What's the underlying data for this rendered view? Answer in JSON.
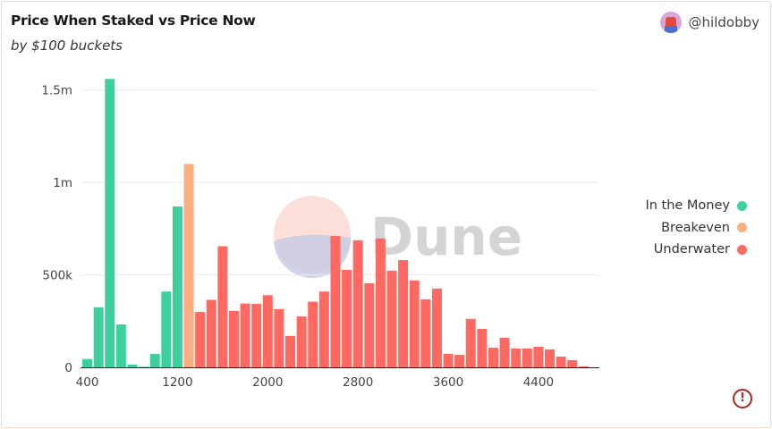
{
  "header": {
    "title": "Price When Staked vs Price Now",
    "subtitle": "by $100 buckets",
    "username": "@hildobby"
  },
  "watermark": "Dune",
  "legend": [
    {
      "label": "In the Money",
      "color": "#3ecf9e"
    },
    {
      "label": "Breakeven",
      "color": "#fbaf80"
    },
    {
      "label": "Underwater",
      "color": "#ff6961"
    }
  ],
  "chart_data": {
    "type": "bar",
    "title": "Price When Staked vs Price Now",
    "subtitle": "by $100 buckets",
    "xlabel": "",
    "ylabel": "",
    "xlim": [
      340,
      4940
    ],
    "ylim": [
      0,
      1600000
    ],
    "grid": true,
    "legend_position": "right",
    "x_ticks": [
      {
        "v": 400,
        "l": "400"
      },
      {
        "v": 1200,
        "l": "1200"
      },
      {
        "v": 2000,
        "l": "2000"
      },
      {
        "v": 2800,
        "l": "2800"
      },
      {
        "v": 3600,
        "l": "3600"
      },
      {
        "v": 4400,
        "l": "4400"
      }
    ],
    "y_ticks": [
      {
        "v": 0,
        "l": "0"
      },
      {
        "v": 500000,
        "l": "500k"
      },
      {
        "v": 1000000,
        "l": "1m"
      },
      {
        "v": 1500000,
        "l": "1.5m"
      }
    ],
    "series": [
      {
        "name": "In the Money",
        "color": "#3ecf9e",
        "x": [
          400,
          500,
          600,
          700,
          800,
          900,
          1000,
          1100,
          1200
        ],
        "values": [
          45000,
          325000,
          1560000,
          232000,
          15000,
          3000,
          72000,
          410000,
          870000
        ]
      },
      {
        "name": "Breakeven",
        "color": "#fbaf80",
        "x": [
          1300
        ],
        "values": [
          1100000
        ]
      },
      {
        "name": "Underwater",
        "color": "#ff6961",
        "x": [
          1400,
          1500,
          1600,
          1700,
          1800,
          1900,
          2000,
          2100,
          2200,
          2300,
          2400,
          2500,
          2600,
          2700,
          2800,
          2900,
          3000,
          3100,
          3200,
          3300,
          3400,
          3500,
          3600,
          3700,
          3800,
          3900,
          4000,
          4100,
          4200,
          4300,
          4400,
          4500,
          4600,
          4700,
          4800
        ],
        "values": [
          300000,
          365000,
          655000,
          305000,
          345000,
          343000,
          390000,
          315000,
          170000,
          275000,
          355000,
          410000,
          710000,
          527000,
          687000,
          455000,
          697000,
          523000,
          580000,
          470000,
          368000,
          426000,
          73000,
          68000,
          262000,
          208000,
          106000,
          160000,
          102000,
          102000,
          111000,
          97000,
          58000,
          39000,
          5000
        ]
      }
    ]
  },
  "alert_icon": "exclamation-circle-icon"
}
